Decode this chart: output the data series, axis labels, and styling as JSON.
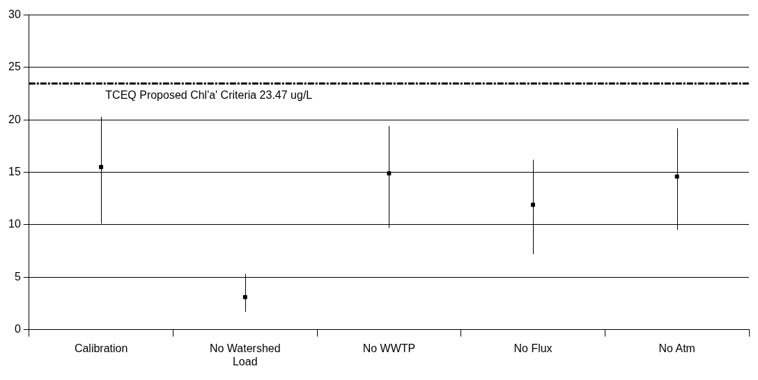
{
  "chart_data": {
    "type": "scatter",
    "categories": [
      "Calibration",
      "No Watershed Load",
      "No WWTP",
      "No Flux",
      "No Atm"
    ],
    "values": [
      15.5,
      3.1,
      14.9,
      11.9,
      14.6
    ],
    "errors": [
      [
        10.1,
        20.3
      ],
      [
        1.7,
        5.3
      ],
      [
        9.7,
        19.4
      ],
      [
        7.2,
        16.2
      ],
      [
        9.5,
        19.2
      ]
    ],
    "color": "#000000",
    "marker": "square",
    "ylim": [
      0,
      30
    ],
    "yticks": [
      0,
      5,
      10,
      15,
      20,
      25,
      30
    ],
    "grid": "y",
    "legend": false,
    "ref_lines": [
      {
        "axis": "y",
        "value": 23.47,
        "label": "TCEQ Proposed Chl'a' Criteria 23.47 ug/L",
        "color": "#000000",
        "line_style": "dashed"
      }
    ]
  }
}
